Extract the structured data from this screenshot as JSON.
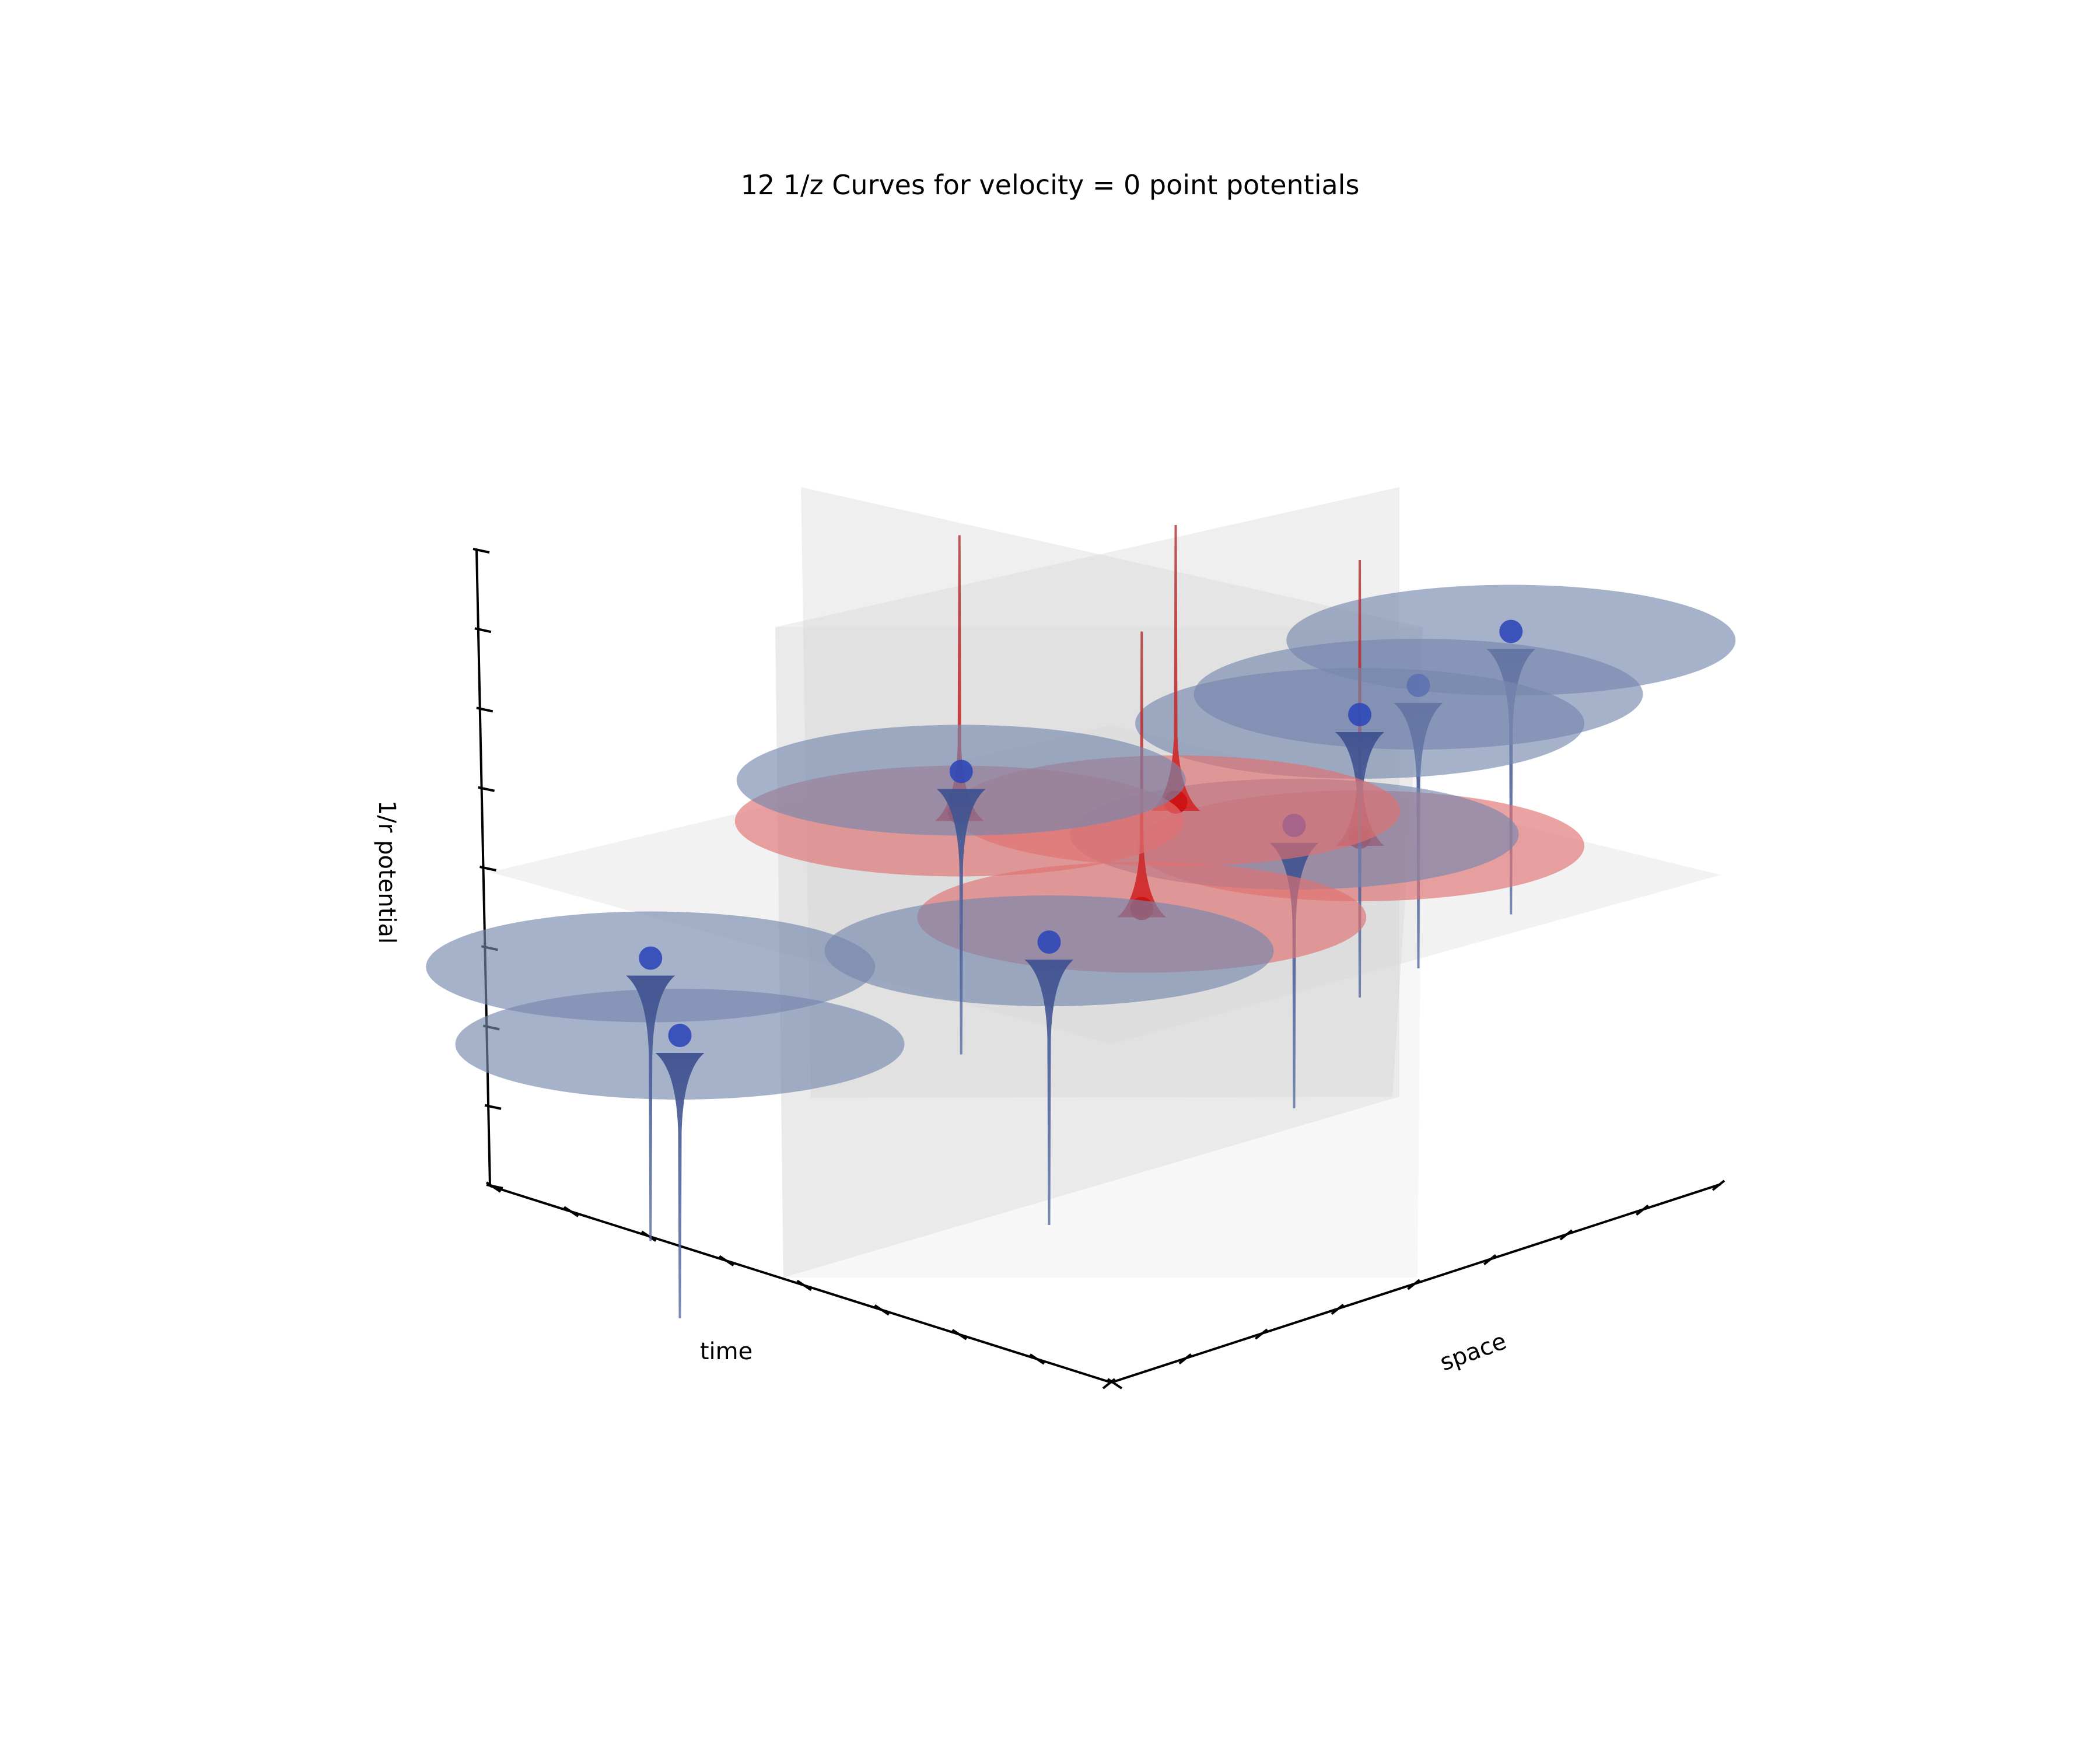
{
  "chart_data": {
    "type": "surface3d",
    "title": "12 1/z Curves for velocity = 0 point potentials",
    "xlabel": "time",
    "ylabel": "space",
    "zlabel": "1/r potential",
    "tick_labels_shown": false,
    "grid": false,
    "colors": {
      "positive": "#d42a2a",
      "negative": "#4f6397",
      "positive_disc": "#e07070",
      "negative_disc": "#7787ad",
      "marker_positive": "#cc1111",
      "marker_negative": "#2f48b8",
      "plane": "#d4d4d4"
    },
    "series": [
      {
        "sign": "positive",
        "time": 0.1,
        "space": 0.5,
        "height": 0.0
      },
      {
        "sign": "negative",
        "time": 0.1,
        "space": 0.5,
        "height": 0.3
      },
      {
        "sign": "negative",
        "time": 0.2,
        "space": 0.85,
        "height": 0.45
      },
      {
        "sign": "negative",
        "time": 0.3,
        "space": 0.8,
        "height": 0.35
      },
      {
        "sign": "positive",
        "time": 0.5,
        "space": 0.55,
        "height": -0.1
      },
      {
        "sign": "negative",
        "time": 0.6,
        "space": 0.5,
        "height": -0.15
      },
      {
        "sign": "negative",
        "time": 0.5,
        "space": 0.8,
        "height": 0.05
      },
      {
        "sign": "positive",
        "time": 0.2,
        "space": 0.3,
        "height": 0.15
      },
      {
        "sign": "positive",
        "time": 0.45,
        "space": 0.2,
        "height": 0.2
      },
      {
        "sign": "negative",
        "time": 0.9,
        "space": 0.2,
        "height": -0.25
      },
      {
        "sign": "negative",
        "time": 0.8,
        "space": 0.05,
        "height": -0.05
      },
      {
        "sign": "negative",
        "time": 0.3,
        "space": 0.05,
        "height": 0.3
      }
    ]
  }
}
